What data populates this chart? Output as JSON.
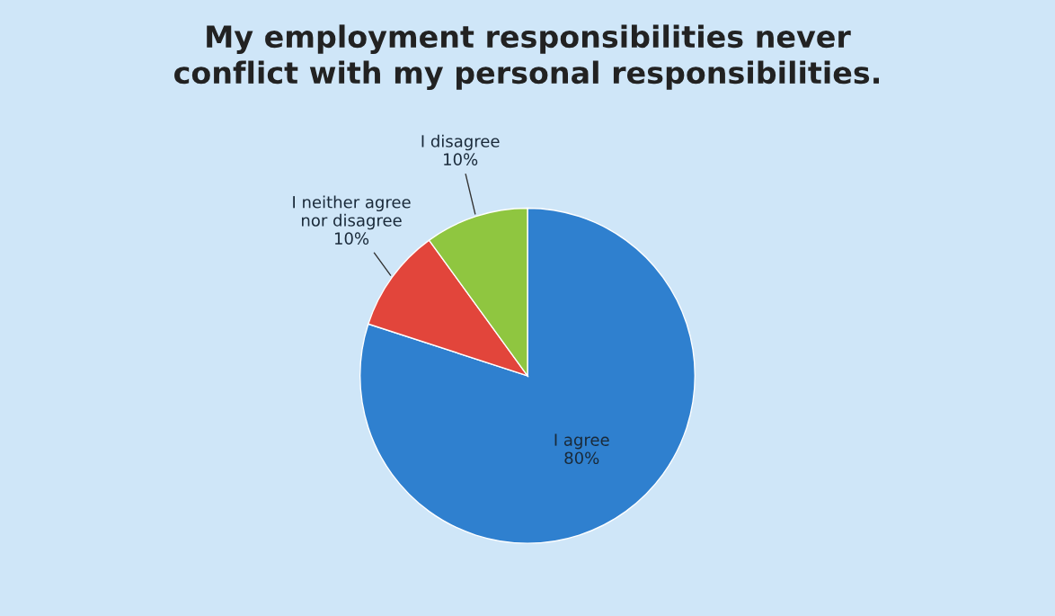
{
  "chart_data": {
    "type": "pie",
    "title": "My employment responsibilities never\nconflict with my personal responsibilities.",
    "categories": [
      "I agree",
      "I neither agree\nnor disagree",
      "I disagree"
    ],
    "values": [
      80,
      10,
      10
    ],
    "value_labels": [
      "80%",
      "10%",
      "10%"
    ],
    "colors": [
      "#2f80cf",
      "#e2453b",
      "#8fc640"
    ],
    "legend": false
  }
}
